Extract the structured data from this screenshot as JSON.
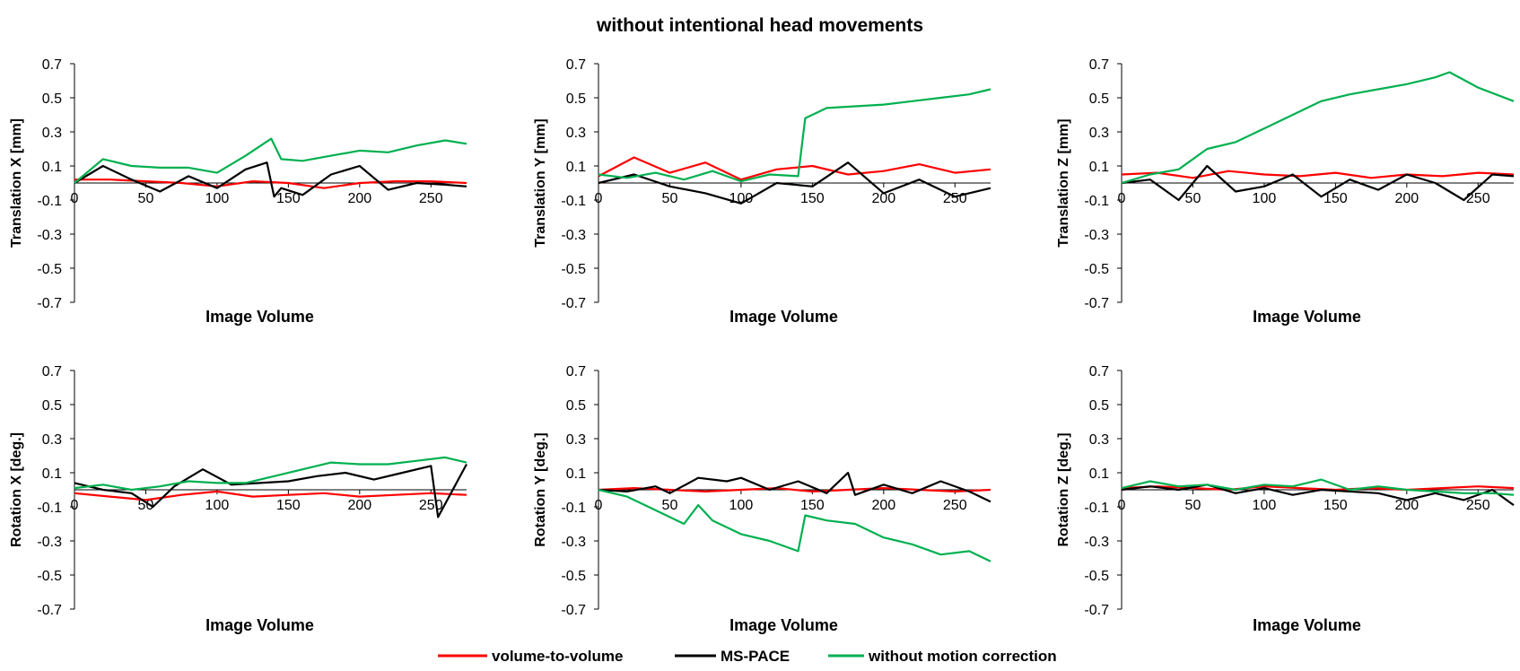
{
  "title": "without intentional head movements",
  "colors": {
    "volume_to_volume": "#ff0000",
    "ms_pace": "#000000",
    "without_motion_correction": "#00b050",
    "axis": "#000000"
  },
  "legend": [
    {
      "key": "volume_to_volume",
      "label": "volume-to-volume"
    },
    {
      "key": "ms_pace",
      "label": "MS-PACE"
    },
    {
      "key": "without_motion_correction",
      "label": "without motion correction"
    }
  ],
  "chart_data": [
    {
      "type": "line",
      "ylabel": "Translation X [mm]",
      "xlabel": "Image Volume",
      "ylim": [
        -0.7,
        0.7
      ],
      "yticks": [
        0.7,
        0.5,
        0.3,
        0.1,
        -0.1,
        -0.3,
        -0.5,
        -0.7
      ],
      "xlim": [
        0,
        275
      ],
      "xticks": [
        0,
        50,
        100,
        150,
        200,
        250
      ],
      "series": [
        {
          "name": "volume-to-volume",
          "key": "volume_to_volume",
          "x": [
            0,
            25,
            50,
            75,
            100,
            125,
            150,
            175,
            200,
            225,
            250,
            275
          ],
          "y": [
            0.02,
            0.02,
            0.01,
            0.0,
            -0.02,
            0.01,
            0.0,
            -0.03,
            0.0,
            0.01,
            0.01,
            0.0
          ]
        },
        {
          "name": "MS-PACE",
          "key": "ms_pace",
          "x": [
            0,
            20,
            40,
            60,
            80,
            100,
            120,
            135,
            140,
            145,
            160,
            180,
            200,
            220,
            240,
            260,
            275
          ],
          "y": [
            0.0,
            0.1,
            0.02,
            -0.05,
            0.04,
            -0.03,
            0.08,
            0.12,
            -0.08,
            -0.03,
            -0.07,
            0.05,
            0.1,
            -0.04,
            0.0,
            -0.01,
            -0.02
          ]
        },
        {
          "name": "without motion correction",
          "key": "without_motion_correction",
          "x": [
            0,
            20,
            40,
            60,
            80,
            100,
            120,
            138,
            145,
            160,
            180,
            200,
            220,
            240,
            260,
            275
          ],
          "y": [
            0.0,
            0.14,
            0.1,
            0.09,
            0.09,
            0.06,
            0.16,
            0.26,
            0.14,
            0.13,
            0.16,
            0.19,
            0.18,
            0.22,
            0.25,
            0.23
          ]
        }
      ]
    },
    {
      "type": "line",
      "ylabel": "Translation Y [mm]",
      "xlabel": "Image Volume",
      "ylim": [
        -0.7,
        0.7
      ],
      "yticks": [
        0.7,
        0.5,
        0.3,
        0.1,
        -0.1,
        -0.3,
        -0.5,
        -0.7
      ],
      "xlim": [
        0,
        275
      ],
      "xticks": [
        0,
        50,
        100,
        150,
        200,
        250
      ],
      "series": [
        {
          "name": "volume-to-volume",
          "key": "volume_to_volume",
          "x": [
            0,
            25,
            50,
            75,
            100,
            125,
            150,
            175,
            200,
            225,
            250,
            275
          ],
          "y": [
            0.04,
            0.15,
            0.06,
            0.12,
            0.02,
            0.08,
            0.1,
            0.05,
            0.07,
            0.11,
            0.06,
            0.08
          ]
        },
        {
          "name": "MS-PACE",
          "key": "ms_pace",
          "x": [
            0,
            25,
            50,
            75,
            100,
            125,
            150,
            175,
            200,
            225,
            250,
            275
          ],
          "y": [
            0.0,
            0.05,
            -0.02,
            -0.06,
            -0.12,
            0.0,
            -0.02,
            0.12,
            -0.06,
            0.02,
            -0.08,
            -0.03
          ]
        },
        {
          "name": "without motion correction",
          "key": "without_motion_correction",
          "x": [
            0,
            20,
            40,
            60,
            80,
            100,
            120,
            140,
            145,
            160,
            180,
            200,
            220,
            240,
            260,
            275
          ],
          "y": [
            0.05,
            0.03,
            0.06,
            0.02,
            0.07,
            0.01,
            0.05,
            0.04,
            0.38,
            0.44,
            0.45,
            0.46,
            0.48,
            0.5,
            0.52,
            0.55
          ]
        }
      ]
    },
    {
      "type": "line",
      "ylabel": "Translation Z [mm]",
      "xlabel": "Image Volume",
      "ylim": [
        -0.7,
        0.7
      ],
      "yticks": [
        0.7,
        0.5,
        0.3,
        0.1,
        -0.1,
        -0.3,
        -0.5,
        -0.7
      ],
      "xlim": [
        0,
        275
      ],
      "xticks": [
        0,
        50,
        100,
        150,
        200,
        250
      ],
      "series": [
        {
          "name": "volume-to-volume",
          "key": "volume_to_volume",
          "x": [
            0,
            25,
            50,
            75,
            100,
            125,
            150,
            175,
            200,
            225,
            250,
            275
          ],
          "y": [
            0.05,
            0.06,
            0.03,
            0.07,
            0.05,
            0.04,
            0.06,
            0.03,
            0.05,
            0.04,
            0.06,
            0.05
          ]
        },
        {
          "name": "MS-PACE",
          "key": "ms_pace",
          "x": [
            0,
            20,
            40,
            60,
            80,
            100,
            120,
            140,
            160,
            180,
            200,
            220,
            240,
            260,
            275
          ],
          "y": [
            0.0,
            0.02,
            -0.1,
            0.1,
            -0.05,
            -0.02,
            0.05,
            -0.08,
            0.02,
            -0.04,
            0.05,
            0.0,
            -0.1,
            0.05,
            0.04
          ]
        },
        {
          "name": "without motion correction",
          "key": "without_motion_correction",
          "x": [
            0,
            20,
            40,
            60,
            80,
            100,
            120,
            140,
            160,
            180,
            200,
            220,
            230,
            250,
            275
          ],
          "y": [
            0.0,
            0.05,
            0.08,
            0.2,
            0.24,
            0.32,
            0.4,
            0.48,
            0.52,
            0.55,
            0.58,
            0.62,
            0.65,
            0.56,
            0.48
          ]
        }
      ]
    },
    {
      "type": "line",
      "ylabel": "Rotation X [deg.]",
      "xlabel": "Image Volume",
      "ylim": [
        -0.7,
        0.7
      ],
      "yticks": [
        0.7,
        0.5,
        0.3,
        0.1,
        -0.1,
        -0.3,
        -0.5,
        -0.7
      ],
      "xlim": [
        0,
        275
      ],
      "xticks": [
        0,
        50,
        100,
        150,
        200,
        250
      ],
      "series": [
        {
          "name": "volume-to-volume",
          "key": "volume_to_volume",
          "x": [
            0,
            25,
            50,
            75,
            100,
            125,
            150,
            175,
            200,
            225,
            250,
            275
          ],
          "y": [
            -0.02,
            -0.04,
            -0.06,
            -0.03,
            -0.01,
            -0.04,
            -0.03,
            -0.02,
            -0.04,
            -0.03,
            -0.02,
            -0.03
          ]
        },
        {
          "name": "MS-PACE",
          "key": "ms_pace",
          "x": [
            0,
            20,
            40,
            55,
            70,
            90,
            110,
            130,
            150,
            170,
            190,
            210,
            230,
            250,
            255,
            275
          ],
          "y": [
            0.04,
            0.0,
            -0.02,
            -0.1,
            0.02,
            0.12,
            0.03,
            0.04,
            0.05,
            0.08,
            0.1,
            0.06,
            0.1,
            0.14,
            -0.16,
            0.15
          ]
        },
        {
          "name": "without motion correction",
          "key": "without_motion_correction",
          "x": [
            0,
            20,
            40,
            60,
            80,
            100,
            120,
            140,
            160,
            180,
            200,
            220,
            240,
            260,
            275
          ],
          "y": [
            0.01,
            0.03,
            0.0,
            0.02,
            0.05,
            0.04,
            0.04,
            0.08,
            0.12,
            0.16,
            0.15,
            0.15,
            0.17,
            0.19,
            0.16
          ]
        }
      ]
    },
    {
      "type": "line",
      "ylabel": "Rotation Y [deg.]",
      "xlabel": "Image Volume",
      "ylim": [
        -0.7,
        0.7
      ],
      "yticks": [
        0.7,
        0.5,
        0.3,
        0.1,
        -0.1,
        -0.3,
        -0.5,
        -0.7
      ],
      "xlim": [
        0,
        275
      ],
      "xticks": [
        0,
        50,
        100,
        150,
        200,
        250
      ],
      "series": [
        {
          "name": "volume-to-volume",
          "key": "volume_to_volume",
          "x": [
            0,
            25,
            50,
            75,
            100,
            125,
            150,
            175,
            200,
            225,
            250,
            275
          ],
          "y": [
            0.0,
            0.01,
            0.0,
            -0.01,
            0.0,
            0.01,
            -0.01,
            0.0,
            0.01,
            0.0,
            -0.01,
            0.0
          ]
        },
        {
          "name": "MS-PACE",
          "key": "ms_pace",
          "x": [
            0,
            20,
            40,
            50,
            70,
            90,
            100,
            120,
            140,
            160,
            175,
            180,
            200,
            220,
            240,
            260,
            275
          ],
          "y": [
            0.0,
            -0.01,
            0.02,
            -0.02,
            0.07,
            0.05,
            0.07,
            0.0,
            0.05,
            -0.02,
            0.1,
            -0.03,
            0.03,
            -0.02,
            0.05,
            -0.01,
            -0.07
          ]
        },
        {
          "name": "without motion correction",
          "key": "without_motion_correction",
          "x": [
            0,
            20,
            40,
            60,
            70,
            80,
            100,
            120,
            140,
            145,
            160,
            180,
            200,
            220,
            240,
            260,
            275
          ],
          "y": [
            0.0,
            -0.04,
            -0.12,
            -0.2,
            -0.09,
            -0.18,
            -0.26,
            -0.3,
            -0.36,
            -0.15,
            -0.18,
            -0.2,
            -0.28,
            -0.32,
            -0.38,
            -0.36,
            -0.42
          ]
        }
      ]
    },
    {
      "type": "line",
      "ylabel": "Rotation Z [deg.]",
      "xlabel": "Image Volume",
      "ylim": [
        -0.7,
        0.7
      ],
      "yticks": [
        0.7,
        0.5,
        0.3,
        0.1,
        -0.1,
        -0.3,
        -0.5,
        -0.7
      ],
      "xlim": [
        0,
        275
      ],
      "xticks": [
        0,
        50,
        100,
        150,
        200,
        250
      ],
      "series": [
        {
          "name": "volume-to-volume",
          "key": "volume_to_volume",
          "x": [
            0,
            25,
            50,
            75,
            100,
            125,
            150,
            175,
            200,
            225,
            250,
            275
          ],
          "y": [
            0.01,
            0.02,
            0.01,
            0.0,
            0.02,
            0.01,
            0.0,
            0.01,
            0.0,
            0.01,
            0.02,
            0.01
          ]
        },
        {
          "name": "MS-PACE",
          "key": "ms_pace",
          "x": [
            0,
            20,
            40,
            60,
            80,
            100,
            120,
            140,
            160,
            180,
            200,
            220,
            240,
            260,
            275
          ],
          "y": [
            0.0,
            0.02,
            0.0,
            0.03,
            -0.02,
            0.01,
            -0.03,
            0.0,
            -0.01,
            -0.02,
            -0.06,
            -0.02,
            -0.06,
            0.0,
            -0.09
          ]
        },
        {
          "name": "without motion correction",
          "key": "without_motion_correction",
          "x": [
            0,
            20,
            40,
            60,
            80,
            100,
            120,
            140,
            160,
            180,
            200,
            220,
            240,
            260,
            275
          ],
          "y": [
            0.01,
            0.05,
            0.02,
            0.03,
            0.0,
            0.03,
            0.02,
            0.06,
            0.0,
            0.02,
            0.0,
            -0.01,
            -0.02,
            -0.02,
            -0.03
          ]
        }
      ]
    }
  ]
}
